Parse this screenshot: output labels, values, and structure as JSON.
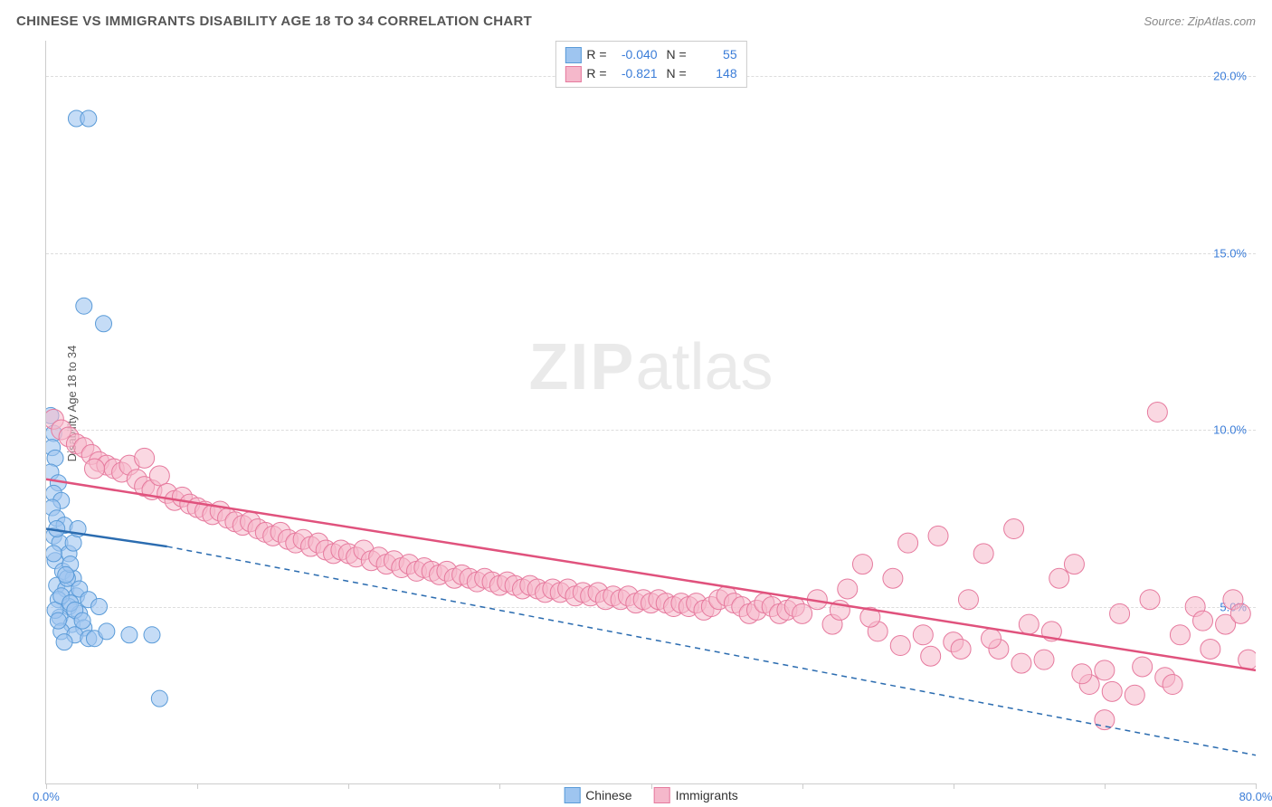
{
  "header": {
    "title": "CHINESE VS IMMIGRANTS DISABILITY AGE 18 TO 34 CORRELATION CHART",
    "source": "Source: ZipAtlas.com"
  },
  "chart": {
    "type": "scatter",
    "ylabel": "Disability Age 18 to 34",
    "watermark_primary": "ZIP",
    "watermark_secondary": "atlas",
    "xlim": [
      0,
      80
    ],
    "ylim": [
      0,
      21
    ],
    "x_ticks": [
      0,
      10,
      20,
      30,
      40,
      50,
      60,
      70,
      80
    ],
    "x_tick_labels": {
      "0": "0.0%",
      "80": "80.0%"
    },
    "y_gridlines": [
      5,
      10,
      15,
      20
    ],
    "y_tick_labels": {
      "5": "5.0%",
      "10": "10.0%",
      "15": "15.0%",
      "20": "20.0%"
    },
    "background_color": "#ffffff",
    "grid_color": "#dddddd",
    "axis_color": "#cccccc",
    "series": [
      {
        "name": "Chinese",
        "color_fill": "#9ec5f0",
        "color_stroke": "#5a9bd8",
        "marker_radius": 9,
        "marker_opacity": 0.6,
        "R": "-0.040",
        "N": "55",
        "trend_solid": {
          "x1": 0,
          "y1": 7.2,
          "x2": 8,
          "y2": 6.7
        },
        "trend_dashed": {
          "x1": 8,
          "y1": 6.7,
          "x2": 80,
          "y2": 0.8
        },
        "trend_color": "#2b6cb0",
        "points": [
          [
            0.3,
            10.4
          ],
          [
            0.5,
            9.9
          ],
          [
            0.4,
            9.5
          ],
          [
            0.6,
            9.2
          ],
          [
            0.3,
            8.8
          ],
          [
            0.8,
            8.5
          ],
          [
            0.5,
            8.2
          ],
          [
            1.0,
            8.0
          ],
          [
            0.4,
            7.8
          ],
          [
            0.7,
            7.5
          ],
          [
            1.2,
            7.3
          ],
          [
            0.5,
            7.0
          ],
          [
            0.9,
            6.8
          ],
          [
            1.5,
            6.5
          ],
          [
            0.6,
            6.3
          ],
          [
            1.1,
            6.0
          ],
          [
            1.8,
            5.8
          ],
          [
            0.7,
            5.6
          ],
          [
            1.3,
            5.5
          ],
          [
            2.0,
            5.3
          ],
          [
            0.8,
            5.2
          ],
          [
            1.5,
            5.0
          ],
          [
            2.2,
            4.8
          ],
          [
            0.9,
            4.7
          ],
          [
            1.7,
            4.5
          ],
          [
            2.5,
            4.4
          ],
          [
            1.0,
            4.3
          ],
          [
            1.9,
            4.2
          ],
          [
            2.8,
            4.1
          ],
          [
            1.2,
            4.0
          ],
          [
            3.2,
            4.1
          ],
          [
            2.2,
            5.5
          ],
          [
            2.8,
            5.2
          ],
          [
            3.5,
            5.0
          ],
          [
            4.0,
            4.3
          ],
          [
            5.5,
            4.2
          ],
          [
            7.0,
            4.2
          ],
          [
            2.0,
            18.8
          ],
          [
            2.8,
            18.8
          ],
          [
            2.5,
            13.5
          ],
          [
            3.8,
            13.0
          ],
          [
            7.5,
            2.4
          ],
          [
            1.4,
            5.8
          ],
          [
            1.6,
            6.2
          ],
          [
            1.8,
            6.8
          ],
          [
            2.1,
            7.2
          ],
          [
            0.6,
            4.9
          ],
          [
            0.8,
            4.6
          ],
          [
            1.0,
            5.3
          ],
          [
            1.3,
            5.9
          ],
          [
            1.6,
            5.1
          ],
          [
            1.9,
            4.9
          ],
          [
            2.4,
            4.6
          ],
          [
            0.5,
            6.5
          ],
          [
            0.7,
            7.2
          ]
        ]
      },
      {
        "name": "Immigrants",
        "color_fill": "#f5b8cb",
        "color_stroke": "#e67a9e",
        "marker_radius": 11,
        "marker_opacity": 0.55,
        "R": "-0.821",
        "N": "148",
        "trend_solid": {
          "x1": 0,
          "y1": 8.6,
          "x2": 80,
          "y2": 3.2
        },
        "trend_color": "#e0527d",
        "points": [
          [
            0.5,
            10.3
          ],
          [
            1.0,
            10.0
          ],
          [
            1.5,
            9.8
          ],
          [
            2.0,
            9.6
          ],
          [
            2.5,
            9.5
          ],
          [
            3.0,
            9.3
          ],
          [
            3.5,
            9.1
          ],
          [
            4.0,
            9.0
          ],
          [
            4.5,
            8.9
          ],
          [
            5.0,
            8.8
          ],
          [
            5.5,
            9.0
          ],
          [
            6.0,
            8.6
          ],
          [
            6.5,
            8.4
          ],
          [
            7.0,
            8.3
          ],
          [
            7.5,
            8.7
          ],
          [
            8.0,
            8.2
          ],
          [
            8.5,
            8.0
          ],
          [
            9.0,
            8.1
          ],
          [
            9.5,
            7.9
          ],
          [
            10.0,
            7.8
          ],
          [
            10.5,
            7.7
          ],
          [
            11.0,
            7.6
          ],
          [
            11.5,
            7.7
          ],
          [
            12.0,
            7.5
          ],
          [
            12.5,
            7.4
          ],
          [
            13.0,
            7.3
          ],
          [
            13.5,
            7.4
          ],
          [
            14.0,
            7.2
          ],
          [
            14.5,
            7.1
          ],
          [
            15.0,
            7.0
          ],
          [
            15.5,
            7.1
          ],
          [
            16.0,
            6.9
          ],
          [
            16.5,
            6.8
          ],
          [
            17.0,
            6.9
          ],
          [
            17.5,
            6.7
          ],
          [
            18.0,
            6.8
          ],
          [
            18.5,
            6.6
          ],
          [
            19.0,
            6.5
          ],
          [
            19.5,
            6.6
          ],
          [
            20.0,
            6.5
          ],
          [
            20.5,
            6.4
          ],
          [
            21.0,
            6.6
          ],
          [
            21.5,
            6.3
          ],
          [
            22.0,
            6.4
          ],
          [
            22.5,
            6.2
          ],
          [
            23.0,
            6.3
          ],
          [
            23.5,
            6.1
          ],
          [
            24.0,
            6.2
          ],
          [
            24.5,
            6.0
          ],
          [
            25.0,
            6.1
          ],
          [
            25.5,
            6.0
          ],
          [
            26.0,
            5.9
          ],
          [
            26.5,
            6.0
          ],
          [
            27.0,
            5.8
          ],
          [
            27.5,
            5.9
          ],
          [
            28.0,
            5.8
          ],
          [
            28.5,
            5.7
          ],
          [
            29.0,
            5.8
          ],
          [
            29.5,
            5.7
          ],
          [
            30.0,
            5.6
          ],
          [
            30.5,
            5.7
          ],
          [
            31.0,
            5.6
          ],
          [
            31.5,
            5.5
          ],
          [
            32.0,
            5.6
          ],
          [
            32.5,
            5.5
          ],
          [
            33.0,
            5.4
          ],
          [
            33.5,
            5.5
          ],
          [
            34.0,
            5.4
          ],
          [
            34.5,
            5.5
          ],
          [
            35.0,
            5.3
          ],
          [
            35.5,
            5.4
          ],
          [
            36.0,
            5.3
          ],
          [
            36.5,
            5.4
          ],
          [
            37.0,
            5.2
          ],
          [
            37.5,
            5.3
          ],
          [
            38.0,
            5.2
          ],
          [
            38.5,
            5.3
          ],
          [
            39.0,
            5.1
          ],
          [
            39.5,
            5.2
          ],
          [
            40.0,
            5.1
          ],
          [
            40.5,
            5.2
          ],
          [
            41.0,
            5.1
          ],
          [
            41.5,
            5.0
          ],
          [
            42.0,
            5.1
          ],
          [
            42.5,
            5.0
          ],
          [
            43.0,
            5.1
          ],
          [
            43.5,
            4.9
          ],
          [
            44.0,
            5.0
          ],
          [
            44.5,
            5.2
          ],
          [
            45.0,
            5.3
          ],
          [
            45.5,
            5.1
          ],
          [
            46.0,
            5.0
          ],
          [
            46.5,
            4.8
          ],
          [
            47.0,
            4.9
          ],
          [
            47.5,
            5.1
          ],
          [
            48.0,
            5.0
          ],
          [
            48.5,
            4.8
          ],
          [
            49.0,
            4.9
          ],
          [
            49.5,
            5.0
          ],
          [
            50.0,
            4.8
          ],
          [
            52.0,
            4.5
          ],
          [
            53.0,
            5.5
          ],
          [
            54.0,
            6.2
          ],
          [
            55.0,
            4.3
          ],
          [
            56.0,
            5.8
          ],
          [
            57.0,
            6.8
          ],
          [
            58.0,
            4.2
          ],
          [
            59.0,
            7.0
          ],
          [
            60.0,
            4.0
          ],
          [
            61.0,
            5.2
          ],
          [
            62.0,
            6.5
          ],
          [
            63.0,
            3.8
          ],
          [
            64.0,
            7.2
          ],
          [
            65.0,
            4.5
          ],
          [
            66.0,
            3.5
          ],
          [
            67.0,
            5.8
          ],
          [
            68.0,
            6.2
          ],
          [
            69.0,
            2.8
          ],
          [
            70.0,
            3.2
          ],
          [
            71.0,
            4.8
          ],
          [
            72.0,
            2.5
          ],
          [
            73.0,
            5.2
          ],
          [
            73.5,
            10.5
          ],
          [
            74.0,
            3.0
          ],
          [
            75.0,
            4.2
          ],
          [
            76.0,
            5.0
          ],
          [
            77.0,
            3.8
          ],
          [
            78.0,
            4.5
          ],
          [
            78.5,
            5.2
          ],
          [
            79.0,
            4.8
          ],
          [
            79.5,
            3.5
          ],
          [
            56.5,
            3.9
          ],
          [
            58.5,
            3.6
          ],
          [
            60.5,
            3.8
          ],
          [
            62.5,
            4.1
          ],
          [
            64.5,
            3.4
          ],
          [
            66.5,
            4.3
          ],
          [
            68.5,
            3.1
          ],
          [
            70.5,
            2.6
          ],
          [
            72.5,
            3.3
          ],
          [
            74.5,
            2.8
          ],
          [
            76.5,
            4.6
          ],
          [
            70.0,
            1.8
          ],
          [
            54.5,
            4.7
          ],
          [
            51.0,
            5.2
          ],
          [
            52.5,
            4.9
          ],
          [
            6.5,
            9.2
          ],
          [
            3.2,
            8.9
          ]
        ]
      }
    ],
    "bottom_legend": [
      {
        "label": "Chinese",
        "fill": "#9ec5f0",
        "stroke": "#5a9bd8"
      },
      {
        "label": "Immigrants",
        "fill": "#f5b8cb",
        "stroke": "#e67a9e"
      }
    ]
  }
}
